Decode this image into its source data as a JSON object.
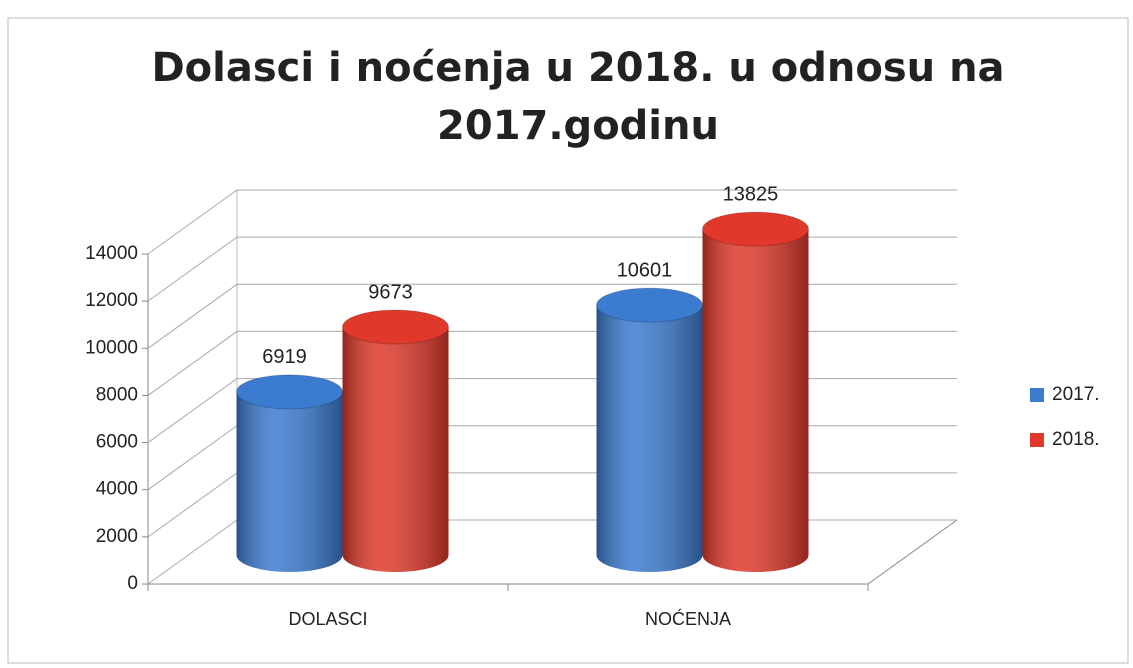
{
  "chart_data": {
    "type": "bar3d",
    "title": [
      "Dolasci i noćenja u 2018. u  odnosu na",
      "2017.godinu"
    ],
    "categories": [
      "DOLASCI",
      "NOĆENJA"
    ],
    "series": [
      {
        "name": "2017.",
        "color": "#3b7bd0",
        "values": [
          6919,
          10601
        ]
      },
      {
        "name": "2018.",
        "color": "#e0382a",
        "values": [
          9673,
          13825
        ]
      }
    ],
    "ylim": [
      0,
      14000
    ],
    "yticks": [
      0,
      2000,
      4000,
      6000,
      8000,
      10000,
      12000,
      14000
    ],
    "grid": true,
    "legend": "right"
  }
}
